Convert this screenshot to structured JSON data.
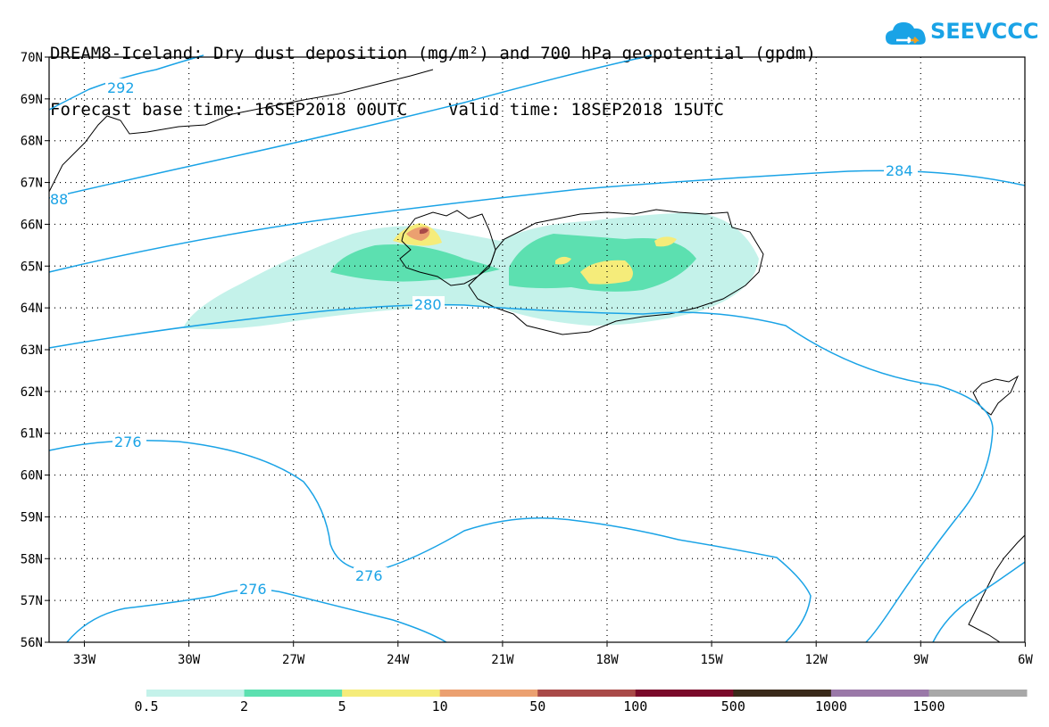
{
  "title": {
    "line1": "DREAM8-Iceland: Dry dust deposition (mg/m²) and 700 hPa geopotential (gpdm)",
    "line2": "Forecast base time: 16SEP2018 00UTC    Valid time: 18SEP2018 15UTC"
  },
  "logo": {
    "text": "SEEVCCC",
    "color": "#1aa3e6",
    "icon": "cloud-icon"
  },
  "map": {
    "lat_labels": [
      "70N",
      "69N",
      "68N",
      "67N",
      "66N",
      "65N",
      "64N",
      "63N",
      "62N",
      "61N",
      "60N",
      "59N",
      "58N",
      "57N",
      "56N"
    ],
    "lon_labels": [
      "33W",
      "30W",
      "27W",
      "24W",
      "21W",
      "18W",
      "15W",
      "12W",
      "9W",
      "6W"
    ],
    "contour_color": "#1aa3e6",
    "contour_labels": [
      "292",
      "88",
      "284",
      "280",
      "276",
      "276",
      "276"
    ]
  },
  "colorbar": {
    "colors": [
      "#c4f2ea",
      "#5ce0b0",
      "#f5ec7a",
      "#eba070",
      "#a94a48",
      "#7a0a2a",
      "#3a2a1a",
      "#9a78a8",
      "#a8a8a8"
    ],
    "labels": [
      "0.5",
      "2",
      "5",
      "10",
      "50",
      "100",
      "500",
      "1000",
      "1500"
    ]
  }
}
